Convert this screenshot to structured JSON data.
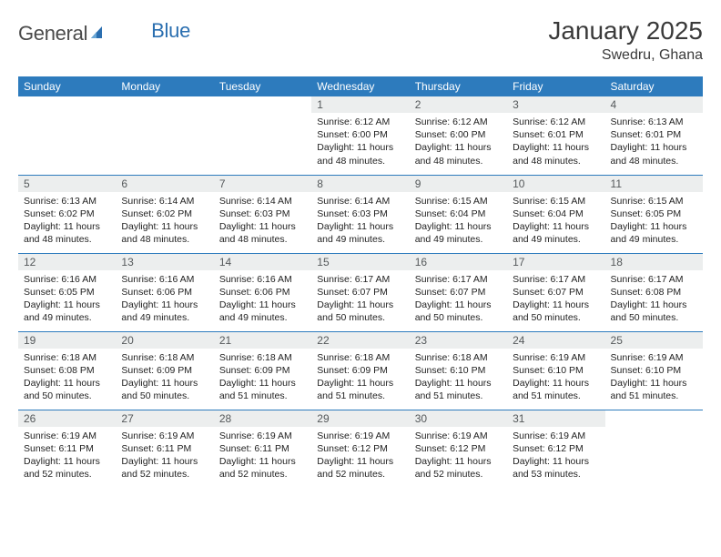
{
  "header": {
    "logo_general": "General",
    "logo_blue": "Blue",
    "month_title": "January 2025",
    "location": "Swedru, Ghana"
  },
  "colors": {
    "header_bg": "#2d7bbd",
    "header_fg": "#ffffff",
    "daynum_bg": "#eceeee",
    "daynum_fg": "#55595b",
    "border": "#2d7bbd",
    "logo_blue": "#2b6fb0",
    "text": "#2a2a2a"
  },
  "day_headers": [
    "Sunday",
    "Monday",
    "Tuesday",
    "Wednesday",
    "Thursday",
    "Friday",
    "Saturday"
  ],
  "weeks": [
    [
      {
        "n": "",
        "lines": []
      },
      {
        "n": "",
        "lines": []
      },
      {
        "n": "",
        "lines": []
      },
      {
        "n": "1",
        "lines": [
          "Sunrise: 6:12 AM",
          "Sunset: 6:00 PM",
          "Daylight: 11 hours",
          "and 48 minutes."
        ]
      },
      {
        "n": "2",
        "lines": [
          "Sunrise: 6:12 AM",
          "Sunset: 6:00 PM",
          "Daylight: 11 hours",
          "and 48 minutes."
        ]
      },
      {
        "n": "3",
        "lines": [
          "Sunrise: 6:12 AM",
          "Sunset: 6:01 PM",
          "Daylight: 11 hours",
          "and 48 minutes."
        ]
      },
      {
        "n": "4",
        "lines": [
          "Sunrise: 6:13 AM",
          "Sunset: 6:01 PM",
          "Daylight: 11 hours",
          "and 48 minutes."
        ]
      }
    ],
    [
      {
        "n": "5",
        "lines": [
          "Sunrise: 6:13 AM",
          "Sunset: 6:02 PM",
          "Daylight: 11 hours",
          "and 48 minutes."
        ]
      },
      {
        "n": "6",
        "lines": [
          "Sunrise: 6:14 AM",
          "Sunset: 6:02 PM",
          "Daylight: 11 hours",
          "and 48 minutes."
        ]
      },
      {
        "n": "7",
        "lines": [
          "Sunrise: 6:14 AM",
          "Sunset: 6:03 PM",
          "Daylight: 11 hours",
          "and 48 minutes."
        ]
      },
      {
        "n": "8",
        "lines": [
          "Sunrise: 6:14 AM",
          "Sunset: 6:03 PM",
          "Daylight: 11 hours",
          "and 49 minutes."
        ]
      },
      {
        "n": "9",
        "lines": [
          "Sunrise: 6:15 AM",
          "Sunset: 6:04 PM",
          "Daylight: 11 hours",
          "and 49 minutes."
        ]
      },
      {
        "n": "10",
        "lines": [
          "Sunrise: 6:15 AM",
          "Sunset: 6:04 PM",
          "Daylight: 11 hours",
          "and 49 minutes."
        ]
      },
      {
        "n": "11",
        "lines": [
          "Sunrise: 6:15 AM",
          "Sunset: 6:05 PM",
          "Daylight: 11 hours",
          "and 49 minutes."
        ]
      }
    ],
    [
      {
        "n": "12",
        "lines": [
          "Sunrise: 6:16 AM",
          "Sunset: 6:05 PM",
          "Daylight: 11 hours",
          "and 49 minutes."
        ]
      },
      {
        "n": "13",
        "lines": [
          "Sunrise: 6:16 AM",
          "Sunset: 6:06 PM",
          "Daylight: 11 hours",
          "and 49 minutes."
        ]
      },
      {
        "n": "14",
        "lines": [
          "Sunrise: 6:16 AM",
          "Sunset: 6:06 PM",
          "Daylight: 11 hours",
          "and 49 minutes."
        ]
      },
      {
        "n": "15",
        "lines": [
          "Sunrise: 6:17 AM",
          "Sunset: 6:07 PM",
          "Daylight: 11 hours",
          "and 50 minutes."
        ]
      },
      {
        "n": "16",
        "lines": [
          "Sunrise: 6:17 AM",
          "Sunset: 6:07 PM",
          "Daylight: 11 hours",
          "and 50 minutes."
        ]
      },
      {
        "n": "17",
        "lines": [
          "Sunrise: 6:17 AM",
          "Sunset: 6:07 PM",
          "Daylight: 11 hours",
          "and 50 minutes."
        ]
      },
      {
        "n": "18",
        "lines": [
          "Sunrise: 6:17 AM",
          "Sunset: 6:08 PM",
          "Daylight: 11 hours",
          "and 50 minutes."
        ]
      }
    ],
    [
      {
        "n": "19",
        "lines": [
          "Sunrise: 6:18 AM",
          "Sunset: 6:08 PM",
          "Daylight: 11 hours",
          "and 50 minutes."
        ]
      },
      {
        "n": "20",
        "lines": [
          "Sunrise: 6:18 AM",
          "Sunset: 6:09 PM",
          "Daylight: 11 hours",
          "and 50 minutes."
        ]
      },
      {
        "n": "21",
        "lines": [
          "Sunrise: 6:18 AM",
          "Sunset: 6:09 PM",
          "Daylight: 11 hours",
          "and 51 minutes."
        ]
      },
      {
        "n": "22",
        "lines": [
          "Sunrise: 6:18 AM",
          "Sunset: 6:09 PM",
          "Daylight: 11 hours",
          "and 51 minutes."
        ]
      },
      {
        "n": "23",
        "lines": [
          "Sunrise: 6:18 AM",
          "Sunset: 6:10 PM",
          "Daylight: 11 hours",
          "and 51 minutes."
        ]
      },
      {
        "n": "24",
        "lines": [
          "Sunrise: 6:19 AM",
          "Sunset: 6:10 PM",
          "Daylight: 11 hours",
          "and 51 minutes."
        ]
      },
      {
        "n": "25",
        "lines": [
          "Sunrise: 6:19 AM",
          "Sunset: 6:10 PM",
          "Daylight: 11 hours",
          "and 51 minutes."
        ]
      }
    ],
    [
      {
        "n": "26",
        "lines": [
          "Sunrise: 6:19 AM",
          "Sunset: 6:11 PM",
          "Daylight: 11 hours",
          "and 52 minutes."
        ]
      },
      {
        "n": "27",
        "lines": [
          "Sunrise: 6:19 AM",
          "Sunset: 6:11 PM",
          "Daylight: 11 hours",
          "and 52 minutes."
        ]
      },
      {
        "n": "28",
        "lines": [
          "Sunrise: 6:19 AM",
          "Sunset: 6:11 PM",
          "Daylight: 11 hours",
          "and 52 minutes."
        ]
      },
      {
        "n": "29",
        "lines": [
          "Sunrise: 6:19 AM",
          "Sunset: 6:12 PM",
          "Daylight: 11 hours",
          "and 52 minutes."
        ]
      },
      {
        "n": "30",
        "lines": [
          "Sunrise: 6:19 AM",
          "Sunset: 6:12 PM",
          "Daylight: 11 hours",
          "and 52 minutes."
        ]
      },
      {
        "n": "31",
        "lines": [
          "Sunrise: 6:19 AM",
          "Sunset: 6:12 PM",
          "Daylight: 11 hours",
          "and 53 minutes."
        ]
      },
      {
        "n": "",
        "lines": []
      }
    ]
  ]
}
